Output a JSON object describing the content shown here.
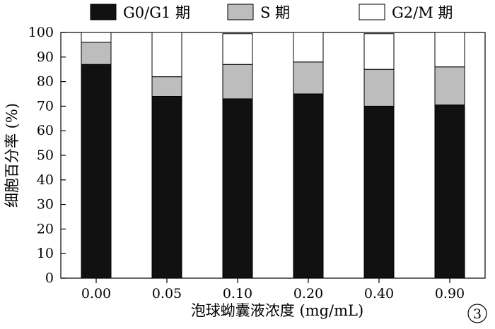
{
  "chart_data": {
    "type": "bar",
    "stacked": true,
    "categories": [
      "0.00",
      "0.05",
      "0.10",
      "0.20",
      "0.40",
      "0.90"
    ],
    "series": [
      {
        "name": "G0/G1 期",
        "color": "#111111",
        "values": [
          87,
          74,
          73,
          75,
          70,
          70.5
        ]
      },
      {
        "name": "S 期",
        "color": "#bdbdbd",
        "values": [
          9,
          8,
          14,
          13,
          15,
          15.5
        ]
      },
      {
        "name": "G2/M 期",
        "color": "#ffffff",
        "values": [
          4,
          18,
          12.5,
          12,
          14.5,
          14
        ]
      }
    ],
    "title": "",
    "xlabel": "泡球蚴囊液浓度 (mg/mL)",
    "ylabel": "细胞百分率 (%)",
    "ylim": [
      0,
      100
    ],
    "yticks": [
      0,
      10,
      20,
      30,
      40,
      50,
      60,
      70,
      80,
      90,
      100
    ],
    "grid": false,
    "legend_position": "top"
  },
  "panel_label": "3"
}
